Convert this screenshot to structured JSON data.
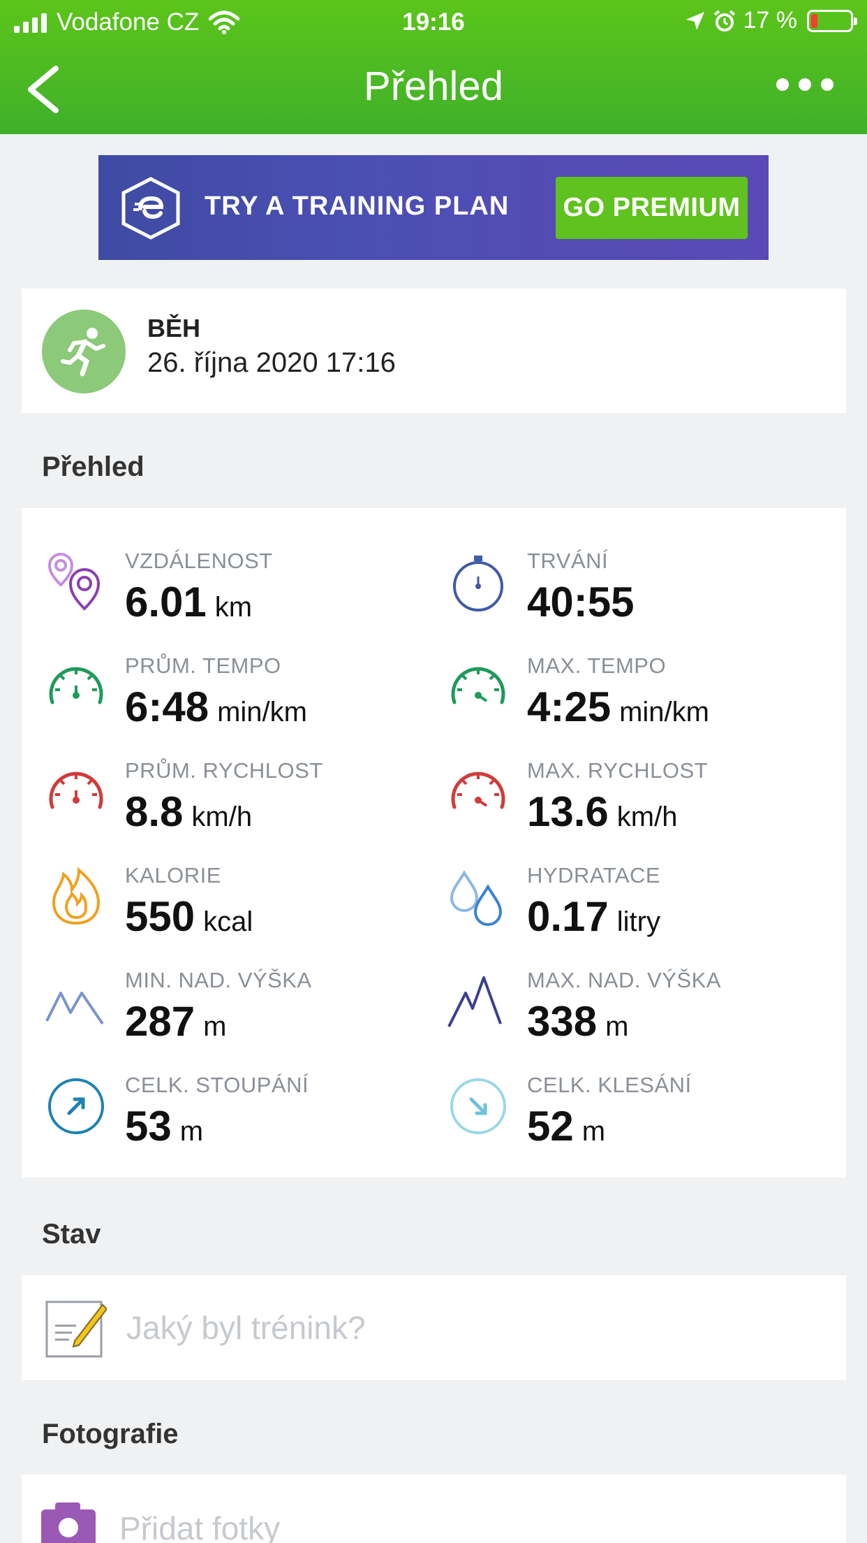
{
  "status_bar": {
    "carrier": "Vodafone CZ",
    "time": "19:16",
    "battery_text": "17 %",
    "battery_level": 0.17
  },
  "nav": {
    "title": "Přehled"
  },
  "banner": {
    "text": "TRY A TRAINING PLAN",
    "button": "GO PREMIUM"
  },
  "activity": {
    "type": "BĚH",
    "date": "26. října 2020 17:16"
  },
  "overview": {
    "title": "Přehled",
    "stats": [
      {
        "label": "VZDÁLENOST",
        "value": "6.01",
        "unit": "km",
        "icon": "location-pins-icon"
      },
      {
        "label": "TRVÁNÍ",
        "value": "40:55",
        "unit": "",
        "icon": "stopwatch-icon"
      },
      {
        "label": "PRŮM. TEMPO",
        "value": "6:48",
        "unit": "min/km",
        "icon": "speedometer-green-icon"
      },
      {
        "label": "MAX. TEMPO",
        "value": "4:25",
        "unit": "min/km",
        "icon": "speedometer-green-max-icon"
      },
      {
        "label": "PRŮM. RYCHLOST",
        "value": "8.8",
        "unit": "km/h",
        "icon": "speedometer-red-icon"
      },
      {
        "label": "MAX. RYCHLOST",
        "value": "13.6",
        "unit": "km/h",
        "icon": "speedometer-red-max-icon"
      },
      {
        "label": "KALORIE",
        "value": "550",
        "unit": "kcal",
        "icon": "flame-icon"
      },
      {
        "label": "HYDRATACE",
        "value": "0.17",
        "unit": "litry",
        "icon": "water-drops-icon"
      },
      {
        "label": "MIN. NAD. VÝŠKA",
        "value": "287",
        "unit": "m",
        "icon": "mountain-min-icon"
      },
      {
        "label": "MAX. NAD. VÝŠKA",
        "value": "338",
        "unit": "m",
        "icon": "mountain-max-icon"
      },
      {
        "label": "CELK. STOUPÁNÍ",
        "value": "53",
        "unit": "m",
        "icon": "ascent-arrow-icon"
      },
      {
        "label": "CELK. KLESÁNÍ",
        "value": "52",
        "unit": "m",
        "icon": "descent-arrow-icon"
      }
    ]
  },
  "status_section": {
    "title": "Stav",
    "placeholder": "Jaký byl trénink?"
  },
  "photos": {
    "title": "Fotografie",
    "add_label": "Přidat fotky"
  },
  "colors": {
    "header_green": "#4bbb22",
    "premium_green": "#5fc21e",
    "banner_purple": "#4b4fb3",
    "activity_icon_bg": "#8cc979"
  }
}
